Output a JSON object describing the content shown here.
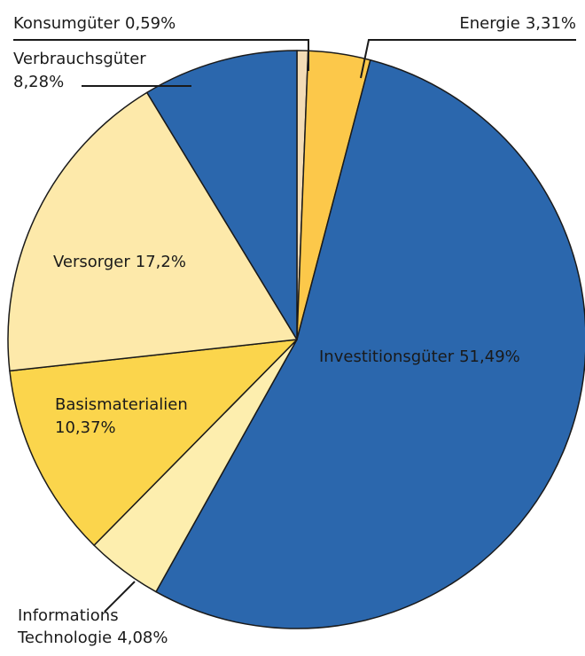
{
  "chart_data": {
    "type": "pie",
    "categories": [
      "Konsumgüter",
      "Energie",
      "Investitionsgüter",
      "Informations Technologie",
      "Basismaterialien",
      "Versorger",
      "Verbrauchsgüter"
    ],
    "values": [
      0.59,
      3.31,
      51.49,
      4.08,
      10.37,
      17.2,
      8.28
    ],
    "value_labels": [
      "0,59%",
      "3,31%",
      "51,49%",
      "4,08%",
      "10,37%",
      "17,2%",
      "8,28%"
    ],
    "colors": [
      "#f3dcb6",
      "#fcc84a",
      "#2b67ad",
      "#fdeeae",
      "#fbd54c",
      "#fde9aa",
      "#2b67ad"
    ]
  }
}
